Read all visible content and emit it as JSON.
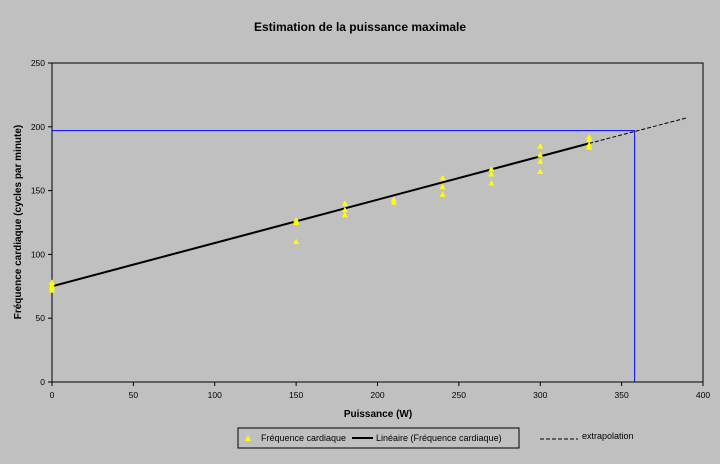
{
  "chart_data": {
    "type": "scatter",
    "title": "Estimation de la puissance maximale",
    "xlabel": "Puissance (W)",
    "ylabel": "Fréquence cardiaque (cycles par minute)",
    "xlim": [
      0,
      400
    ],
    "ylim": [
      0,
      250
    ],
    "x_ticks": [
      0,
      50,
      100,
      150,
      200,
      250,
      300,
      350,
      400
    ],
    "y_ticks": [
      0,
      50,
      100,
      150,
      200,
      250
    ],
    "grid": false,
    "legend_position": "bottom",
    "series": [
      {
        "name": "Fréquence cardiaque",
        "kind": "markers",
        "marker": "triangle",
        "color": "#ffff00",
        "points": [
          [
            0,
            78
          ],
          [
            0,
            76
          ],
          [
            0,
            74
          ],
          [
            0,
            72
          ],
          [
            150,
            127
          ],
          [
            150,
            125
          ],
          [
            150,
            110
          ],
          [
            180,
            140
          ],
          [
            180,
            135
          ],
          [
            180,
            131
          ],
          [
            210,
            143
          ],
          [
            210,
            141
          ],
          [
            240,
            160
          ],
          [
            240,
            153
          ],
          [
            240,
            147
          ],
          [
            270,
            167
          ],
          [
            270,
            163
          ],
          [
            270,
            156
          ],
          [
            300,
            185
          ],
          [
            300,
            178
          ],
          [
            300,
            173
          ],
          [
            300,
            165
          ],
          [
            330,
            192
          ],
          [
            330,
            190
          ],
          [
            330,
            186
          ],
          [
            330,
            184
          ]
        ]
      },
      {
        "name": "Linéaire (Fréquence cardiaque)",
        "kind": "line",
        "color": "#000000",
        "points": [
          [
            0,
            75
          ],
          [
            330,
            187
          ]
        ]
      },
      {
        "name": "extrapolation",
        "kind": "dashed-line",
        "color": "#000000",
        "points": [
          [
            330,
            187
          ],
          [
            390,
            207
          ]
        ]
      }
    ],
    "guides": {
      "color": "#0000ff",
      "max_heart_rate": 197,
      "max_power": 358
    }
  }
}
